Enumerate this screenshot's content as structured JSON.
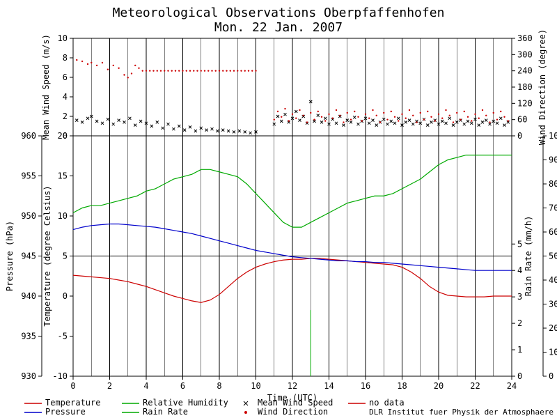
{
  "title_line1": "Meteorological Observations Oberpfaffenhofen",
  "title_line2": "Mon. 22 Jan. 2007",
  "attribution": "DLR Institut fuer Physik der Atmosphaere",
  "x_axis_label": "Time (UTC)",
  "x_ticks": [
    0,
    2,
    4,
    6,
    8,
    10,
    12,
    14,
    16,
    18,
    20,
    22,
    24
  ],
  "top_panel": {
    "y_left_label": "Mean Wind Speed (m/s)",
    "y_left_ticks": [
      0,
      2,
      4,
      6,
      8,
      10
    ],
    "y_right_label": "Wind Direction (degree)",
    "y_right_ticks": [
      0,
      60,
      120,
      180,
      240,
      300,
      360
    ]
  },
  "bottom_panel": {
    "y_left1_label": "Pressure (hPa)",
    "y_left1_ticks": [
      930,
      935,
      940,
      945,
      950,
      955,
      960
    ],
    "y_left2_label": "Temperature (degree Celsius)",
    "y_left2_ticks": [
      -10,
      -5,
      0,
      5,
      10,
      15,
      20
    ],
    "y_right1_label": "Rain Rate (mm/h)",
    "y_right1_ticks": [
      0,
      1,
      2,
      3,
      4,
      5
    ],
    "y_right2_label": "Relative Humidity (%)",
    "y_right2_ticks": [
      0,
      10,
      20,
      30,
      40,
      50,
      60,
      70,
      80,
      90,
      100
    ]
  },
  "legend": [
    {
      "label": "Temperature",
      "color": "#cc0000",
      "type": "line"
    },
    {
      "label": "Pressure",
      "color": "#0000cc",
      "type": "line"
    },
    {
      "label": "Relative Humidity",
      "color": "#00aa00",
      "type": "line"
    },
    {
      "label": "Rain Rate",
      "color": "#00aa00",
      "type": "line"
    },
    {
      "label": "Mean Wind Speed",
      "color": "#000000",
      "type": "marker",
      "marker": "x"
    },
    {
      "label": "Wind Direction",
      "color": "#cc0000",
      "type": "marker",
      "marker": "dot"
    },
    {
      "label": "no data",
      "color": "#cc0000",
      "type": "line"
    }
  ],
  "colors": {
    "temperature": "#cc0000",
    "pressure": "#0000cc",
    "humidity": "#00aa00",
    "rainrate": "#00aa00",
    "windspeed": "#000000",
    "winddir": "#cc0000",
    "grid": "#000000",
    "bg": "#ffffff"
  },
  "fonts": {
    "title": 18,
    "axis_label": 12,
    "tick": 12,
    "legend": 12
  },
  "series": {
    "temperature_y": [
      2.6,
      2.5,
      2.4,
      2.3,
      2.2,
      2.0,
      1.8,
      1.5,
      1.2,
      0.8,
      0.4,
      0.0,
      -0.3,
      -0.6,
      -0.8,
      -0.5,
      0.2,
      1.2,
      2.2,
      3.0,
      3.6,
      4.0,
      4.3,
      4.5,
      4.6,
      4.6,
      4.7,
      4.7,
      4.6,
      4.5,
      4.4,
      4.3,
      4.2,
      4.1,
      4.0,
      3.9,
      3.6,
      3.0,
      2.2,
      1.2,
      0.5,
      0.1,
      0.0,
      -0.1,
      -0.1,
      -0.1,
      0.0,
      0.0,
      0.0
    ],
    "pressure_y": [
      948.3,
      948.6,
      948.8,
      948.9,
      949.0,
      949.0,
      948.9,
      948.8,
      948.7,
      948.6,
      948.4,
      948.2,
      948.0,
      947.8,
      947.5,
      947.2,
      946.9,
      946.6,
      946.3,
      946.0,
      945.7,
      945.5,
      945.3,
      945.1,
      944.9,
      944.8,
      944.7,
      944.6,
      944.5,
      944.4,
      944.4,
      944.3,
      944.3,
      944.2,
      944.2,
      944.1,
      944.0,
      943.9,
      943.8,
      943.7,
      943.6,
      943.5,
      943.4,
      943.3,
      943.2,
      943.2,
      943.2,
      943.2,
      943.2
    ],
    "humidity_y": [
      68,
      70,
      71,
      71,
      72,
      73,
      74,
      75,
      77,
      78,
      80,
      82,
      83,
      84,
      86,
      86,
      85,
      84,
      83,
      80,
      76,
      72,
      68,
      64,
      62,
      62,
      64,
      66,
      68,
      70,
      72,
      73,
      74,
      75,
      75,
      76,
      78,
      80,
      82,
      85,
      88,
      90,
      91,
      92,
      92,
      92,
      92,
      92,
      92
    ],
    "windspeed": [
      {
        "x": 0.2,
        "y": 1.6
      },
      {
        "x": 0.5,
        "y": 1.4
      },
      {
        "x": 0.8,
        "y": 1.8
      },
      {
        "x": 1.0,
        "y": 2.0
      },
      {
        "x": 1.3,
        "y": 1.5
      },
      {
        "x": 1.6,
        "y": 1.3
      },
      {
        "x": 1.9,
        "y": 1.7
      },
      {
        "x": 2.2,
        "y": 1.2
      },
      {
        "x": 2.5,
        "y": 1.6
      },
      {
        "x": 2.8,
        "y": 1.4
      },
      {
        "x": 3.1,
        "y": 1.8
      },
      {
        "x": 3.4,
        "y": 1.1
      },
      {
        "x": 3.7,
        "y": 1.5
      },
      {
        "x": 4.0,
        "y": 1.3
      },
      {
        "x": 4.3,
        "y": 1.0
      },
      {
        "x": 4.6,
        "y": 1.4
      },
      {
        "x": 4.9,
        "y": 0.8
      },
      {
        "x": 5.2,
        "y": 1.2
      },
      {
        "x": 5.5,
        "y": 0.7
      },
      {
        "x": 5.8,
        "y": 1.0
      },
      {
        "x": 6.1,
        "y": 0.6
      },
      {
        "x": 6.4,
        "y": 0.9
      },
      {
        "x": 6.7,
        "y": 0.5
      },
      {
        "x": 7.0,
        "y": 0.8
      },
      {
        "x": 7.3,
        "y": 0.6
      },
      {
        "x": 7.6,
        "y": 0.7
      },
      {
        "x": 7.9,
        "y": 0.5
      },
      {
        "x": 8.2,
        "y": 0.6
      },
      {
        "x": 8.5,
        "y": 0.5
      },
      {
        "x": 8.8,
        "y": 0.4
      },
      {
        "x": 9.1,
        "y": 0.5
      },
      {
        "x": 9.4,
        "y": 0.4
      },
      {
        "x": 9.7,
        "y": 0.3
      },
      {
        "x": 10.0,
        "y": 0.4
      },
      {
        "x": 11.0,
        "y": 1.2
      },
      {
        "x": 11.2,
        "y": 2.0
      },
      {
        "x": 11.4,
        "y": 1.5
      },
      {
        "x": 11.6,
        "y": 2.2
      },
      {
        "x": 11.8,
        "y": 1.4
      },
      {
        "x": 12.0,
        "y": 1.8
      },
      {
        "x": 12.2,
        "y": 2.5
      },
      {
        "x": 12.4,
        "y": 1.6
      },
      {
        "x": 12.6,
        "y": 2.0
      },
      {
        "x": 12.8,
        "y": 1.3
      },
      {
        "x": 13.0,
        "y": 3.5
      },
      {
        "x": 13.2,
        "y": 1.5
      },
      {
        "x": 13.4,
        "y": 2.1
      },
      {
        "x": 13.6,
        "y": 1.4
      },
      {
        "x": 13.8,
        "y": 1.8
      },
      {
        "x": 14.0,
        "y": 1.2
      },
      {
        "x": 14.2,
        "y": 1.7
      },
      {
        "x": 14.4,
        "y": 1.3
      },
      {
        "x": 14.6,
        "y": 2.0
      },
      {
        "x": 14.8,
        "y": 1.1
      },
      {
        "x": 15.0,
        "y": 1.6
      },
      {
        "x": 15.2,
        "y": 1.4
      },
      {
        "x": 15.4,
        "y": 1.9
      },
      {
        "x": 15.6,
        "y": 1.2
      },
      {
        "x": 15.8,
        "y": 1.5
      },
      {
        "x": 16.0,
        "y": 1.8
      },
      {
        "x": 16.2,
        "y": 1.3
      },
      {
        "x": 16.4,
        "y": 1.6
      },
      {
        "x": 16.6,
        "y": 1.1
      },
      {
        "x": 16.8,
        "y": 1.4
      },
      {
        "x": 17.0,
        "y": 1.7
      },
      {
        "x": 17.2,
        "y": 1.2
      },
      {
        "x": 17.4,
        "y": 1.5
      },
      {
        "x": 17.6,
        "y": 1.3
      },
      {
        "x": 17.8,
        "y": 1.8
      },
      {
        "x": 18.0,
        "y": 1.1
      },
      {
        "x": 18.2,
        "y": 1.4
      },
      {
        "x": 18.4,
        "y": 1.6
      },
      {
        "x": 18.6,
        "y": 1.2
      },
      {
        "x": 18.8,
        "y": 1.5
      },
      {
        "x": 19.0,
        "y": 1.3
      },
      {
        "x": 19.2,
        "y": 1.7
      },
      {
        "x": 19.4,
        "y": 1.1
      },
      {
        "x": 19.6,
        "y": 1.4
      },
      {
        "x": 19.8,
        "y": 1.6
      },
      {
        "x": 20.0,
        "y": 1.2
      },
      {
        "x": 20.2,
        "y": 1.5
      },
      {
        "x": 20.4,
        "y": 1.3
      },
      {
        "x": 20.6,
        "y": 1.8
      },
      {
        "x": 20.8,
        "y": 1.1
      },
      {
        "x": 21.0,
        "y": 1.4
      },
      {
        "x": 21.2,
        "y": 1.6
      },
      {
        "x": 21.4,
        "y": 1.2
      },
      {
        "x": 21.6,
        "y": 1.5
      },
      {
        "x": 21.8,
        "y": 1.3
      },
      {
        "x": 22.0,
        "y": 1.7
      },
      {
        "x": 22.2,
        "y": 1.1
      },
      {
        "x": 22.4,
        "y": 1.4
      },
      {
        "x": 22.6,
        "y": 1.6
      },
      {
        "x": 22.8,
        "y": 1.2
      },
      {
        "x": 23.0,
        "y": 1.5
      },
      {
        "x": 23.2,
        "y": 1.3
      },
      {
        "x": 23.4,
        "y": 1.8
      },
      {
        "x": 23.6,
        "y": 1.1
      },
      {
        "x": 23.8,
        "y": 1.4
      }
    ],
    "winddir": [
      {
        "x": 0.2,
        "y": 280
      },
      {
        "x": 0.5,
        "y": 275
      },
      {
        "x": 0.8,
        "y": 265
      },
      {
        "x": 1.0,
        "y": 270
      },
      {
        "x": 1.3,
        "y": 260
      },
      {
        "x": 1.6,
        "y": 270
      },
      {
        "x": 1.9,
        "y": 245
      },
      {
        "x": 2.2,
        "y": 260
      },
      {
        "x": 2.5,
        "y": 250
      },
      {
        "x": 2.8,
        "y": 225
      },
      {
        "x": 3.0,
        "y": 215
      },
      {
        "x": 3.2,
        "y": 230
      },
      {
        "x": 3.4,
        "y": 260
      },
      {
        "x": 3.6,
        "y": 250
      },
      {
        "x": 3.8,
        "y": 240
      },
      {
        "x": 4.0,
        "y": 240
      },
      {
        "x": 4.2,
        "y": 240
      },
      {
        "x": 4.4,
        "y": 240
      },
      {
        "x": 4.6,
        "y": 240
      },
      {
        "x": 4.8,
        "y": 240
      },
      {
        "x": 5.0,
        "y": 240
      },
      {
        "x": 5.2,
        "y": 240
      },
      {
        "x": 5.4,
        "y": 240
      },
      {
        "x": 5.6,
        "y": 240
      },
      {
        "x": 5.8,
        "y": 240
      },
      {
        "x": 6.0,
        "y": 240
      },
      {
        "x": 6.2,
        "y": 240
      },
      {
        "x": 6.4,
        "y": 240
      },
      {
        "x": 6.6,
        "y": 240
      },
      {
        "x": 6.8,
        "y": 240
      },
      {
        "x": 7.0,
        "y": 240
      },
      {
        "x": 7.2,
        "y": 240
      },
      {
        "x": 7.4,
        "y": 240
      },
      {
        "x": 7.6,
        "y": 240
      },
      {
        "x": 7.8,
        "y": 240
      },
      {
        "x": 8.0,
        "y": 240
      },
      {
        "x": 8.2,
        "y": 240
      },
      {
        "x": 8.4,
        "y": 240
      },
      {
        "x": 8.6,
        "y": 240
      },
      {
        "x": 8.8,
        "y": 240
      },
      {
        "x": 9.0,
        "y": 240
      },
      {
        "x": 9.2,
        "y": 240
      },
      {
        "x": 9.4,
        "y": 240
      },
      {
        "x": 9.6,
        "y": 240
      },
      {
        "x": 9.8,
        "y": 240
      },
      {
        "x": 10.0,
        "y": 240
      },
      {
        "x": 11.0,
        "y": 60
      },
      {
        "x": 11.2,
        "y": 90
      },
      {
        "x": 11.4,
        "y": 70
      },
      {
        "x": 11.6,
        "y": 100
      },
      {
        "x": 11.8,
        "y": 55
      },
      {
        "x": 12.0,
        "y": 80
      },
      {
        "x": 12.2,
        "y": 65
      },
      {
        "x": 12.4,
        "y": 95
      },
      {
        "x": 12.6,
        "y": 75
      },
      {
        "x": 12.8,
        "y": 50
      },
      {
        "x": 13.0,
        "y": 85
      },
      {
        "x": 13.2,
        "y": 60
      },
      {
        "x": 13.4,
        "y": 90
      },
      {
        "x": 13.6,
        "y": 70
      },
      {
        "x": 13.8,
        "y": 55
      },
      {
        "x": 14.0,
        "y": 80
      },
      {
        "x": 14.2,
        "y": 65
      },
      {
        "x": 14.4,
        "y": 95
      },
      {
        "x": 14.6,
        "y": 75
      },
      {
        "x": 14.8,
        "y": 50
      },
      {
        "x": 15.0,
        "y": 85
      },
      {
        "x": 15.2,
        "y": 60
      },
      {
        "x": 15.4,
        "y": 90
      },
      {
        "x": 15.6,
        "y": 70
      },
      {
        "x": 15.8,
        "y": 55
      },
      {
        "x": 16.0,
        "y": 80
      },
      {
        "x": 16.2,
        "y": 65
      },
      {
        "x": 16.4,
        "y": 95
      },
      {
        "x": 16.6,
        "y": 75
      },
      {
        "x": 16.8,
        "y": 50
      },
      {
        "x": 17.0,
        "y": 85
      },
      {
        "x": 17.2,
        "y": 60
      },
      {
        "x": 17.4,
        "y": 90
      },
      {
        "x": 17.6,
        "y": 70
      },
      {
        "x": 17.8,
        "y": 55
      },
      {
        "x": 18.0,
        "y": 80
      },
      {
        "x": 18.2,
        "y": 65
      },
      {
        "x": 18.4,
        "y": 95
      },
      {
        "x": 18.6,
        "y": 75
      },
      {
        "x": 18.8,
        "y": 50
      },
      {
        "x": 19.0,
        "y": 85
      },
      {
        "x": 19.2,
        "y": 60
      },
      {
        "x": 19.4,
        "y": 90
      },
      {
        "x": 19.6,
        "y": 70
      },
      {
        "x": 19.8,
        "y": 55
      },
      {
        "x": 20.0,
        "y": 80
      },
      {
        "x": 20.2,
        "y": 65
      },
      {
        "x": 20.4,
        "y": 95
      },
      {
        "x": 20.6,
        "y": 75
      },
      {
        "x": 20.8,
        "y": 50
      },
      {
        "x": 21.0,
        "y": 85
      },
      {
        "x": 21.2,
        "y": 60
      },
      {
        "x": 21.4,
        "y": 90
      },
      {
        "x": 21.6,
        "y": 70
      },
      {
        "x": 21.8,
        "y": 55
      },
      {
        "x": 22.0,
        "y": 80
      },
      {
        "x": 22.2,
        "y": 65
      },
      {
        "x": 22.4,
        "y": 95
      },
      {
        "x": 22.6,
        "y": 75
      },
      {
        "x": 22.8,
        "y": 50
      },
      {
        "x": 23.0,
        "y": 85
      },
      {
        "x": 23.2,
        "y": 60
      },
      {
        "x": 23.4,
        "y": 90
      },
      {
        "x": 23.6,
        "y": 70
      },
      {
        "x": 23.8,
        "y": 55
      }
    ]
  }
}
